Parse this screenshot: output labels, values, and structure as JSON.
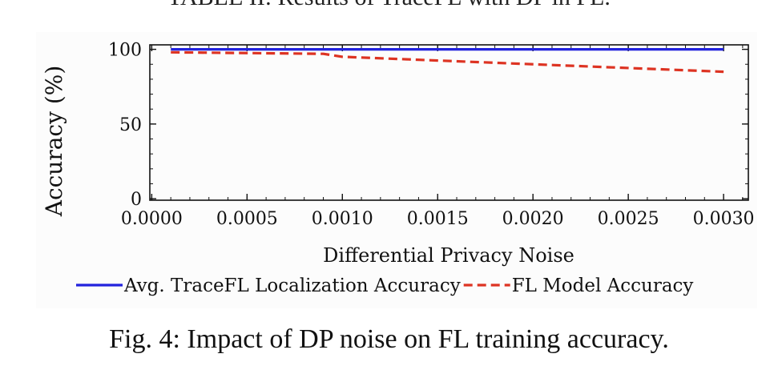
{
  "header_fragment": "TABLE II: Results of TraceFL with DP in FL.",
  "caption": "Fig. 4: Impact of DP noise on FL training accuracy.",
  "chart_data": {
    "type": "line",
    "title": "",
    "xlabel": "Differential Privacy Noise",
    "ylabel": "Accuracy (%)",
    "xlim": [
      -1e-05,
      0.00313
    ],
    "ylim": [
      -1,
      103
    ],
    "x_ticks": [
      0.0,
      0.0005,
      0.001,
      0.0015,
      0.002,
      0.0025,
      0.003
    ],
    "x_tick_labels": [
      "0.0000",
      "0.0005",
      "0.0010",
      "0.0015",
      "0.0020",
      "0.0025",
      "0.0030"
    ],
    "y_ticks": [
      0,
      50,
      100
    ],
    "y_tick_labels": [
      "0",
      "50",
      "100"
    ],
    "grid": false,
    "legend_position": "bottom",
    "series": [
      {
        "name": "Avg. TraceFL Localization Accuracy",
        "color": "#2222dd",
        "dash": "solid",
        "x": [
          0.0001,
          0.0009,
          0.001,
          0.003
        ],
        "y": [
          100,
          100,
          100,
          100
        ]
      },
      {
        "name": "FL Model Accuracy",
        "color": "#dd3322",
        "dash": "dashed",
        "x": [
          0.0001,
          0.0009,
          0.001,
          0.003
        ],
        "y": [
          98,
          97,
          95,
          85
        ]
      }
    ]
  }
}
